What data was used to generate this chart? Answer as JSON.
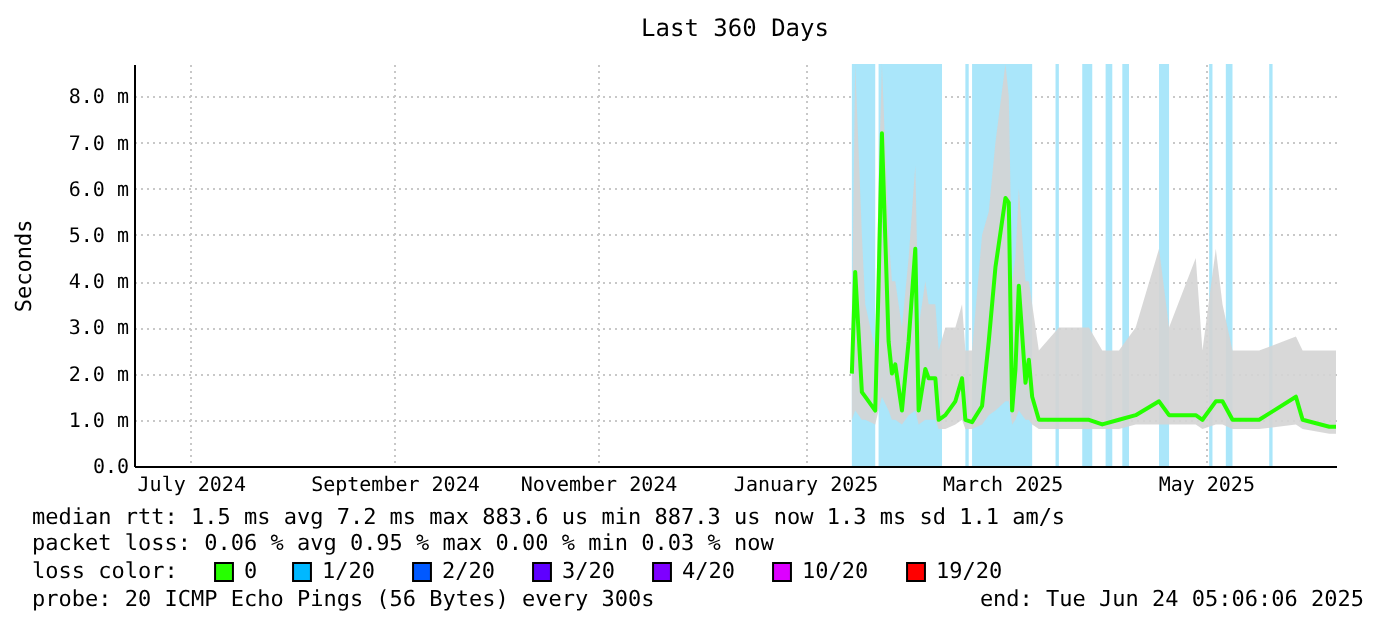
{
  "chart_data": {
    "type": "line",
    "title": "Last 360 Days",
    "ylabel": "Seconds",
    "x": [
      "2025-01-30",
      "2025-01-31",
      "2025-02-02",
      "2025-02-03",
      "2025-02-06",
      "2025-02-07",
      "2025-02-08",
      "2025-02-10",
      "2025-02-11",
      "2025-02-12",
      "2025-02-14",
      "2025-02-16",
      "2025-02-18",
      "2025-02-19",
      "2025-02-21",
      "2025-02-22",
      "2025-02-24",
      "2025-02-25",
      "2025-02-27",
      "2025-03-02",
      "2025-03-04",
      "2025-03-05",
      "2025-03-07",
      "2025-03-10",
      "2025-03-12",
      "2025-03-14",
      "2025-03-17",
      "2025-03-18",
      "2025-03-19",
      "2025-03-20",
      "2025-03-21",
      "2025-03-23",
      "2025-03-24",
      "2025-03-25",
      "2025-03-27",
      "2025-04-02",
      "2025-04-11",
      "2025-04-15",
      "2025-04-20",
      "2025-04-25",
      "2025-05-02",
      "2025-05-05",
      "2025-05-13",
      "2025-05-15",
      "2025-05-19",
      "2025-05-21",
      "2025-05-24",
      "2025-06-01",
      "2025-06-12",
      "2025-06-14",
      "2025-06-22",
      "2025-06-24"
    ],
    "series": [
      {
        "name": "0",
        "color": "#26ff00",
        "values": [
          2.0,
          4.2,
          1.6,
          1.5,
          1.2,
          3.9,
          7.2,
          2.7,
          2.0,
          2.2,
          1.2,
          2.7,
          4.7,
          1.2,
          2.1,
          1.9,
          1.9,
          1.0,
          1.1,
          1.4,
          1.9,
          1.0,
          0.95,
          1.3,
          2.7,
          4.3,
          5.8,
          5.7,
          1.2,
          2.1,
          3.9,
          1.8,
          2.3,
          1.5,
          1.0,
          1.0,
          1.0,
          0.9,
          1.0,
          1.1,
          1.4,
          1.1,
          1.1,
          1.0,
          1.4,
          1.4,
          1.0,
          1.0,
          1.5,
          1.0,
          0.85,
          0.85
        ],
        "upper": [
          3.0,
          8.7,
          5.0,
          3.5,
          2.5,
          6.0,
          8.7,
          5.0,
          4.0,
          4.0,
          3.0,
          4.5,
          6.5,
          3.0,
          4.0,
          3.5,
          3.5,
          2.5,
          3.0,
          3.0,
          3.5,
          2.5,
          2.5,
          5.0,
          5.5,
          7.0,
          8.7,
          8.0,
          4.0,
          4.5,
          6.0,
          4.0,
          4.0,
          3.5,
          2.5,
          3.0,
          3.0,
          2.5,
          2.5,
          3.0,
          4.7,
          3.0,
          4.5,
          2.5,
          4.7,
          3.5,
          2.5,
          2.5,
          2.8,
          2.5,
          2.5,
          2.5
        ],
        "lower": [
          1.0,
          1.2,
          1.0,
          1.0,
          0.9,
          1.2,
          1.5,
          1.2,
          1.0,
          1.0,
          0.9,
          1.1,
          1.2,
          0.9,
          1.0,
          1.0,
          1.0,
          0.8,
          0.8,
          0.9,
          1.0,
          0.8,
          0.8,
          0.9,
          1.1,
          1.2,
          1.4,
          1.4,
          0.9,
          1.0,
          1.2,
          1.0,
          1.0,
          0.9,
          0.8,
          0.8,
          0.8,
          0.8,
          0.8,
          0.9,
          0.9,
          0.9,
          0.9,
          0.8,
          0.9,
          0.9,
          0.8,
          0.8,
          0.9,
          0.8,
          0.7,
          0.7
        ]
      },
      {
        "name": "1/20",
        "color": "#00b8ff",
        "values": [
          null,
          null,
          null,
          null,
          null,
          null,
          null,
          null,
          null,
          null,
          null,
          null,
          null,
          null,
          null,
          null,
          null,
          null,
          null,
          null,
          null,
          null,
          null,
          null,
          null,
          null,
          null,
          null,
          null,
          null,
          null,
          null,
          null,
          null,
          null,
          null,
          null,
          null,
          null,
          null,
          null,
          null,
          null,
          null,
          null,
          null,
          null,
          null,
          null,
          null,
          null,
          null
        ]
      },
      {
        "name": "2/20",
        "color": "#0059ff",
        "values": [
          null,
          null,
          null,
          null,
          null,
          null,
          null,
          null,
          null,
          null,
          null,
          null,
          null,
          null,
          null,
          null,
          null,
          null,
          null,
          null,
          null,
          null,
          null,
          null,
          null,
          null,
          null,
          null,
          null,
          null,
          null,
          null,
          null,
          null,
          null,
          null,
          null,
          null,
          null,
          null,
          null,
          null,
          null,
          null,
          null,
          null,
          null,
          null,
          null,
          null,
          null,
          null
        ]
      },
      {
        "name": "3/20",
        "color": "#5e00ff",
        "values": [
          null,
          null,
          null,
          null,
          null,
          null,
          null,
          null,
          null,
          null,
          null,
          null,
          null,
          null,
          null,
          null,
          null,
          null,
          null,
          null,
          null,
          null,
          null,
          null,
          null,
          null,
          null,
          null,
          null,
          null,
          null,
          null,
          null,
          null,
          null,
          null,
          null,
          null,
          null,
          null,
          null,
          null,
          null,
          null,
          null,
          null,
          null,
          null,
          null,
          null,
          null,
          null
        ]
      },
      {
        "name": "4/20",
        "color": "#7e00ff",
        "values": [
          null,
          null,
          null,
          null,
          null,
          null,
          null,
          null,
          null,
          null,
          null,
          null,
          null,
          null,
          null,
          null,
          null,
          null,
          null,
          null,
          null,
          null,
          null,
          null,
          null,
          null,
          null,
          null,
          null,
          null,
          null,
          null,
          null,
          null,
          null,
          null,
          null,
          null,
          null,
          null,
          null,
          null,
          null,
          null,
          null,
          null,
          null,
          null,
          null,
          null,
          null,
          null
        ]
      },
      {
        "name": "10/20",
        "color": "#dd00ff",
        "values": [
          null,
          null,
          null,
          null,
          null,
          null,
          null,
          null,
          null,
          null,
          null,
          null,
          null,
          null,
          null,
          null,
          null,
          null,
          null,
          null,
          null,
          null,
          null,
          null,
          null,
          null,
          null,
          null,
          null,
          null,
          null,
          null,
          null,
          null,
          null,
          null,
          null,
          null,
          null,
          null,
          null,
          null,
          null,
          null,
          null,
          null,
          null,
          null,
          null,
          null,
          null,
          null
        ]
      },
      {
        "name": "19/20",
        "color": "#ff0000",
        "values": [
          null,
          null,
          null,
          null,
          null,
          null,
          null,
          null,
          null,
          null,
          null,
          null,
          null,
          null,
          null,
          null,
          null,
          null,
          null,
          null,
          null,
          null,
          null,
          null,
          null,
          null,
          null,
          null,
          null,
          null,
          null,
          null,
          null,
          null,
          null,
          null,
          null,
          null,
          null,
          null,
          null,
          null,
          null,
          null,
          null,
          null,
          null,
          null,
          null,
          null,
          null,
          null
        ]
      }
    ],
    "legend_title": "loss color:",
    "legend": "bottom",
    "bands": [
      {
        "axis": "x",
        "from": "2025-01-30",
        "to": "2025-02-06",
        "color": "#aae6fa"
      },
      {
        "axis": "x",
        "from": "2025-02-07",
        "to": "2025-02-26",
        "color": "#aae6fa"
      },
      {
        "axis": "x",
        "from": "2025-03-05",
        "to": "2025-03-06",
        "color": "#aae6fa"
      },
      {
        "axis": "x",
        "from": "2025-03-07",
        "to": "2025-03-25",
        "color": "#aae6fa"
      },
      {
        "axis": "x",
        "from": "2025-04-01",
        "to": "2025-04-02",
        "color": "#aae6fa"
      },
      {
        "axis": "x",
        "from": "2025-04-09",
        "to": "2025-04-12",
        "color": "#aae6fa"
      },
      {
        "axis": "x",
        "from": "2025-04-16",
        "to": "2025-04-18",
        "color": "#aae6fa"
      },
      {
        "axis": "x",
        "from": "2025-04-21",
        "to": "2025-04-23",
        "color": "#aae6fa"
      },
      {
        "axis": "x",
        "from": "2025-05-02",
        "to": "2025-05-05",
        "color": "#aae6fa"
      },
      {
        "axis": "x",
        "from": "2025-05-17",
        "to": "2025-05-18",
        "color": "#aae6fa"
      },
      {
        "axis": "x",
        "from": "2025-05-22",
        "to": "2025-05-24",
        "color": "#aae6fa"
      },
      {
        "axis": "x",
        "from": "2025-06-04",
        "to": "2025-06-05",
        "color": "#aae6fa"
      }
    ],
    "xlim": [
      "2024-06-29",
      "2025-06-24"
    ],
    "xticks": [
      {
        "value": "2024-07-16",
        "label": "July 2024"
      },
      {
        "value": "2024-09-15",
        "label": "September 2024"
      },
      {
        "value": "2024-11-15",
        "label": "November 2024"
      },
      {
        "value": "2025-01-16",
        "label": "January 2025"
      },
      {
        "value": "2025-03-16",
        "label": "March 2025"
      },
      {
        "value": "2025-05-16",
        "label": "May 2025"
      }
    ],
    "ylim": [
      0,
      8.7
    ],
    "yticks": [
      {
        "value": 0,
        "label": "0.0"
      },
      {
        "value": 1,
        "label": "1.0 m"
      },
      {
        "value": 2,
        "label": "2.0 m"
      },
      {
        "value": 3,
        "label": "3.0 m"
      },
      {
        "value": 4,
        "label": "4.0 m"
      },
      {
        "value": 5,
        "label": "5.0 m"
      },
      {
        "value": 6,
        "label": "6.0 m"
      },
      {
        "value": 7,
        "label": "7.0 m"
      },
      {
        "value": 8,
        "label": "8.0 m"
      }
    ],
    "grid": true,
    "marker": "none",
    "line_style": "solid",
    "annotations": [
      "median rtt:  1.5 ms avg  7.2 ms max  883.6 us min  887.3 us now  1.3 ms sd  1.1   am/s",
      "packet loss: 0.06 % avg  0.95 % max  0.00 % min  0.03 % now",
      "probe:       20 ICMP Echo Pings (56 Bytes) every 300s",
      "end: Tue Jun 24 05:06:06 2025"
    ]
  }
}
